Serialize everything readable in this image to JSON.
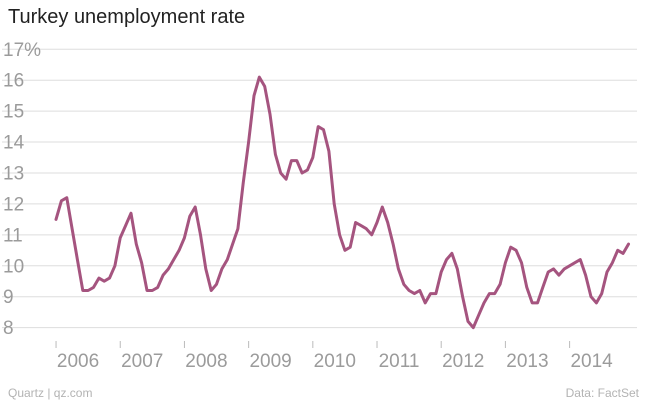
{
  "chart_data": {
    "type": "line",
    "title": "Turkey unemployment rate",
    "xlabel": "",
    "ylabel": "",
    "ylim": [
      7.6,
      17.3
    ],
    "xlim": [
      2005.75,
      2015.05
    ],
    "y_ticks": [
      8,
      9,
      10,
      11,
      12,
      13,
      14,
      15,
      16,
      17
    ],
    "y_tick_labels": [
      "8",
      "9",
      "10",
      "11",
      "12",
      "13",
      "14",
      "15",
      "16",
      "17%"
    ],
    "x_ticks": [
      2006,
      2007,
      2008,
      2009,
      2010,
      2011,
      2012,
      2013,
      2014
    ],
    "x_tick_labels": [
      "2006",
      "2007",
      "2008",
      "2009",
      "2010",
      "2011",
      "2012",
      "2013",
      "2014"
    ],
    "grid": "horizontal",
    "line_color": "#a5547f",
    "series": [
      {
        "x": [
          2006.0,
          2006.083,
          2006.167,
          2006.25,
          2006.333,
          2006.417,
          2006.5,
          2006.583,
          2006.667,
          2006.75,
          2006.833,
          2006.917,
          2007.0,
          2007.083,
          2007.167,
          2007.25,
          2007.333,
          2007.417,
          2007.5,
          2007.583,
          2007.667,
          2007.75,
          2007.833,
          2007.917,
          2008.0,
          2008.083,
          2008.167,
          2008.25,
          2008.333,
          2008.417,
          2008.5,
          2008.583,
          2008.667,
          2008.75,
          2008.833,
          2008.917,
          2009.0,
          2009.083,
          2009.167,
          2009.25,
          2009.333,
          2009.417,
          2009.5,
          2009.583,
          2009.667,
          2009.75,
          2009.833,
          2009.917,
          2010.0,
          2010.083,
          2010.167,
          2010.25,
          2010.333,
          2010.417,
          2010.5,
          2010.583,
          2010.667,
          2010.75,
          2010.833,
          2010.917,
          2011.0,
          2011.083,
          2011.167,
          2011.25,
          2011.333,
          2011.417,
          2011.5,
          2011.583,
          2011.667,
          2011.75,
          2011.833,
          2011.917,
          2012.0,
          2012.083,
          2012.167,
          2012.25,
          2012.333,
          2012.417,
          2012.5,
          2012.583,
          2012.667,
          2012.75,
          2012.833,
          2012.917,
          2013.0,
          2013.083,
          2013.167,
          2013.25,
          2013.333,
          2013.417,
          2013.5,
          2013.583,
          2013.667,
          2013.75,
          2013.833,
          2013.917,
          2014.0,
          2014.083,
          2014.167,
          2014.25,
          2014.333,
          2014.417,
          2014.5,
          2014.583,
          2014.667,
          2014.75,
          2014.833,
          2014.917
        ],
        "y": [
          11.5,
          12.1,
          12.2,
          11.2,
          10.2,
          9.2,
          9.2,
          9.3,
          9.6,
          9.5,
          9.6,
          10.0,
          10.9,
          11.3,
          11.7,
          10.7,
          10.1,
          9.2,
          9.2,
          9.3,
          9.7,
          9.9,
          10.2,
          10.5,
          10.9,
          11.6,
          11.9,
          11.0,
          9.9,
          9.2,
          9.4,
          9.9,
          10.2,
          10.7,
          11.2,
          12.7,
          14.0,
          15.5,
          16.1,
          15.8,
          14.9,
          13.6,
          13.0,
          12.8,
          13.4,
          13.4,
          13.0,
          13.1,
          13.5,
          14.5,
          14.4,
          13.7,
          12.0,
          11.0,
          10.5,
          10.6,
          11.4,
          11.3,
          11.2,
          11.0,
          11.4,
          11.9,
          11.4,
          10.7,
          9.9,
          9.4,
          9.2,
          9.1,
          9.2,
          8.8,
          9.1,
          9.1,
          9.8,
          10.2,
          10.4,
          9.9,
          9.0,
          8.2,
          8.0,
          8.4,
          8.8,
          9.1,
          9.1,
          9.4,
          10.1,
          10.6,
          10.5,
          10.1,
          9.3,
          8.8,
          8.8,
          9.3,
          9.8,
          9.9,
          9.7,
          9.9,
          10.0,
          10.1,
          10.2,
          9.7,
          9.0,
          8.8,
          9.1,
          9.8,
          10.1,
          10.5,
          10.4,
          10.7
        ]
      }
    ]
  },
  "footer": {
    "source_left": "Quartz | qz.com",
    "source_right": "Data: FactSet"
  }
}
